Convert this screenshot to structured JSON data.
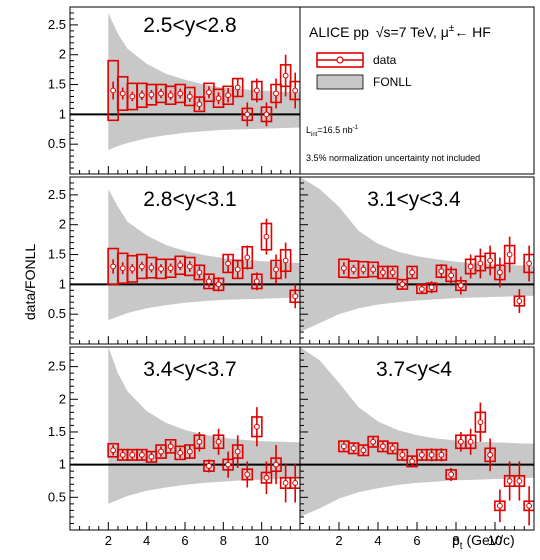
{
  "figure": {
    "experiment_label": "ALICE pp",
    "energy_label": "√s=7 TeV, μ",
    "energy_pm": "±",
    "arrow_label": "← HF",
    "legend": {
      "data": "data",
      "fonll": "FONLL"
    },
    "lumi_main": "L",
    "lumi_sub": "int",
    "lumi_value": "=16.5 nb",
    "lumi_sup": "-1",
    "norm_note": "3.5% normalization uncertainty not included",
    "colors": {
      "data": "#e00000",
      "band": "#c8c8c8",
      "frame": "#000000"
    }
  },
  "chart_data": [
    {
      "type": "scatter",
      "panel": "top-left",
      "title": "2.5<y<2.8",
      "ylabel": "data/FONLL",
      "xlabel": "",
      "xlim": [
        0,
        12
      ],
      "ylim": [
        0,
        2.8
      ],
      "yticks": [
        "0.5",
        "1",
        "1.5",
        "2",
        "2.5"
      ],
      "xticks": [],
      "reference_line": 1,
      "fonll_band": {
        "x": [
          2.0,
          2.5,
          3,
          4,
          5,
          6,
          7,
          8,
          9,
          10,
          11,
          12
        ],
        "low": [
          0.4,
          0.47,
          0.52,
          0.6,
          0.65,
          0.69,
          0.72,
          0.74,
          0.75,
          0.76,
          0.77,
          0.78
        ],
        "high": [
          2.7,
          2.35,
          2.1,
          1.85,
          1.68,
          1.58,
          1.5,
          1.45,
          1.42,
          1.4,
          1.38,
          1.37
        ]
      },
      "points": [
        {
          "x": 2.25,
          "y": 1.4,
          "stat": 0.15,
          "syst": 0.5
        },
        {
          "x": 2.75,
          "y": 1.35,
          "stat": 0.1,
          "syst": 0.28
        },
        {
          "x": 3.25,
          "y": 1.3,
          "stat": 0.08,
          "syst": 0.22
        },
        {
          "x": 3.75,
          "y": 1.32,
          "stat": 0.08,
          "syst": 0.2
        },
        {
          "x": 4.25,
          "y": 1.33,
          "stat": 0.08,
          "syst": 0.17
        },
        {
          "x": 4.75,
          "y": 1.35,
          "stat": 0.08,
          "syst": 0.15
        },
        {
          "x": 5.25,
          "y": 1.32,
          "stat": 0.08,
          "syst": 0.15
        },
        {
          "x": 5.75,
          "y": 1.35,
          "stat": 0.08,
          "syst": 0.15
        },
        {
          "x": 6.25,
          "y": 1.3,
          "stat": 0.09,
          "syst": 0.15
        },
        {
          "x": 6.75,
          "y": 1.17,
          "stat": 0.1,
          "syst": 0.12
        },
        {
          "x": 7.25,
          "y": 1.37,
          "stat": 0.1,
          "syst": 0.15
        },
        {
          "x": 7.75,
          "y": 1.27,
          "stat": 0.1,
          "syst": 0.15
        },
        {
          "x": 8.25,
          "y": 1.32,
          "stat": 0.12,
          "syst": 0.15
        },
        {
          "x": 8.75,
          "y": 1.45,
          "stat": 0.15,
          "syst": 0.15
        },
        {
          "x": 9.25,
          "y": 1.0,
          "stat": 0.2,
          "syst": 0.1
        },
        {
          "x": 9.75,
          "y": 1.4,
          "stat": 0.2,
          "syst": 0.15
        },
        {
          "x": 10.25,
          "y": 1.0,
          "stat": 0.2,
          "syst": 0.12
        },
        {
          "x": 10.75,
          "y": 1.35,
          "stat": 0.25,
          "syst": 0.15
        },
        {
          "x": 11.25,
          "y": 1.65,
          "stat": 0.35,
          "syst": 0.18
        },
        {
          "x": 11.75,
          "y": 1.4,
          "stat": 0.3,
          "syst": 0.15
        }
      ]
    },
    {
      "type": "scatter",
      "panel": "mid-left",
      "title": "2.8<y<3.1",
      "ylabel": "data/FONLL",
      "xlabel": "",
      "xlim": [
        0,
        12
      ],
      "ylim": [
        0,
        2.8
      ],
      "yticks": [
        "0.5",
        "1",
        "1.5",
        "2",
        "2.5"
      ],
      "xticks": [],
      "reference_line": 1,
      "fonll_band": {
        "x": [
          2.0,
          2.5,
          3,
          4,
          5,
          6,
          7,
          8,
          9,
          10,
          11,
          12
        ],
        "low": [
          0.4,
          0.46,
          0.52,
          0.6,
          0.65,
          0.69,
          0.72,
          0.74,
          0.75,
          0.76,
          0.77,
          0.78
        ],
        "high": [
          2.6,
          2.3,
          2.05,
          1.82,
          1.66,
          1.56,
          1.49,
          1.44,
          1.41,
          1.39,
          1.37,
          1.36
        ]
      },
      "points": [
        {
          "x": 2.25,
          "y": 1.3,
          "stat": 0.12,
          "syst": 0.3
        },
        {
          "x": 2.75,
          "y": 1.27,
          "stat": 0.1,
          "syst": 0.25
        },
        {
          "x": 3.25,
          "y": 1.26,
          "stat": 0.08,
          "syst": 0.22
        },
        {
          "x": 3.75,
          "y": 1.3,
          "stat": 0.08,
          "syst": 0.2
        },
        {
          "x": 4.25,
          "y": 1.28,
          "stat": 0.08,
          "syst": 0.17
        },
        {
          "x": 4.75,
          "y": 1.26,
          "stat": 0.08,
          "syst": 0.16
        },
        {
          "x": 5.25,
          "y": 1.27,
          "stat": 0.08,
          "syst": 0.15
        },
        {
          "x": 5.75,
          "y": 1.32,
          "stat": 0.08,
          "syst": 0.15
        },
        {
          "x": 6.25,
          "y": 1.3,
          "stat": 0.09,
          "syst": 0.15
        },
        {
          "x": 6.75,
          "y": 1.2,
          "stat": 0.1,
          "syst": 0.12
        },
        {
          "x": 7.25,
          "y": 1.05,
          "stat": 0.1,
          "syst": 0.12
        },
        {
          "x": 7.75,
          "y": 1.0,
          "stat": 0.12,
          "syst": 0.1
        },
        {
          "x": 8.25,
          "y": 1.35,
          "stat": 0.15,
          "syst": 0.15
        },
        {
          "x": 8.75,
          "y": 1.25,
          "stat": 0.15,
          "syst": 0.15
        },
        {
          "x": 9.25,
          "y": 1.45,
          "stat": 0.2,
          "syst": 0.18
        },
        {
          "x": 9.75,
          "y": 1.05,
          "stat": 0.15,
          "syst": 0.12
        },
        {
          "x": 10.25,
          "y": 1.8,
          "stat": 0.3,
          "syst": 0.22
        },
        {
          "x": 10.75,
          "y": 1.25,
          "stat": 0.25,
          "syst": 0.15
        },
        {
          "x": 11.25,
          "y": 1.4,
          "stat": 0.3,
          "syst": 0.18
        },
        {
          "x": 11.75,
          "y": 0.8,
          "stat": 0.2,
          "syst": 0.1
        }
      ]
    },
    {
      "type": "scatter",
      "panel": "mid-right",
      "title": "3.1<y<3.4",
      "ylabel": "",
      "xlabel": "",
      "xlim": [
        0,
        12
      ],
      "ylim": [
        0,
        2.8
      ],
      "yticks": [],
      "xticks": [],
      "reference_line": 1,
      "fonll_band": {
        "x": [
          0.0,
          1,
          2,
          3,
          4,
          5,
          6,
          7,
          8,
          9,
          10,
          11,
          12
        ],
        "low": [
          0.2,
          0.35,
          0.5,
          0.6,
          0.66,
          0.7,
          0.73,
          0.75,
          0.77,
          0.78,
          0.79,
          0.8,
          0.81
        ],
        "high": [
          2.8,
          2.6,
          2.3,
          1.9,
          1.68,
          1.55,
          1.47,
          1.42,
          1.38,
          1.35,
          1.33,
          1.32,
          1.31
        ]
      },
      "points": [
        {
          "x": 2.25,
          "y": 1.27,
          "stat": 0.1,
          "syst": 0.15
        },
        {
          "x": 2.75,
          "y": 1.25,
          "stat": 0.08,
          "syst": 0.14
        },
        {
          "x": 3.25,
          "y": 1.25,
          "stat": 0.08,
          "syst": 0.13
        },
        {
          "x": 3.75,
          "y": 1.25,
          "stat": 0.08,
          "syst": 0.12
        },
        {
          "x": 4.25,
          "y": 1.2,
          "stat": 0.08,
          "syst": 0.1
        },
        {
          "x": 4.75,
          "y": 1.2,
          "stat": 0.08,
          "syst": 0.1
        },
        {
          "x": 5.25,
          "y": 1.0,
          "stat": 0.08,
          "syst": 0.08
        },
        {
          "x": 5.75,
          "y": 1.2,
          "stat": 0.08,
          "syst": 0.1
        },
        {
          "x": 6.25,
          "y": 0.92,
          "stat": 0.08,
          "syst": 0.07
        },
        {
          "x": 6.75,
          "y": 0.95,
          "stat": 0.1,
          "syst": 0.07
        },
        {
          "x": 7.25,
          "y": 1.22,
          "stat": 0.12,
          "syst": 0.1
        },
        {
          "x": 7.75,
          "y": 1.15,
          "stat": 0.15,
          "syst": 0.1
        },
        {
          "x": 8.25,
          "y": 0.98,
          "stat": 0.15,
          "syst": 0.08
        },
        {
          "x": 8.75,
          "y": 1.3,
          "stat": 0.2,
          "syst": 0.12
        },
        {
          "x": 9.25,
          "y": 1.35,
          "stat": 0.25,
          "syst": 0.12
        },
        {
          "x": 9.75,
          "y": 1.4,
          "stat": 0.25,
          "syst": 0.12
        },
        {
          "x": 10.25,
          "y": 1.2,
          "stat": 0.25,
          "syst": 0.12
        },
        {
          "x": 10.75,
          "y": 1.5,
          "stat": 0.3,
          "syst": 0.15
        },
        {
          "x": 11.25,
          "y": 0.72,
          "stat": 0.2,
          "syst": 0.08
        },
        {
          "x": 11.75,
          "y": 1.35,
          "stat": 0.3,
          "syst": 0.15
        }
      ]
    },
    {
      "type": "scatter",
      "panel": "bottom-left",
      "title": "3.4<y<3.7",
      "ylabel": "data/FONLL",
      "xlabel": "",
      "xlim": [
        0,
        12
      ],
      "ylim": [
        0,
        2.8
      ],
      "yticks": [
        "0.5",
        "1",
        "1.5",
        "2",
        "2.5"
      ],
      "xticks": [
        "2",
        "4",
        "6",
        "8",
        "10"
      ],
      "reference_line": 1,
      "fonll_band": {
        "x": [
          2.0,
          2.5,
          3,
          4,
          5,
          6,
          7,
          8,
          9,
          10,
          11,
          12
        ],
        "low": [
          0.4,
          0.46,
          0.52,
          0.6,
          0.65,
          0.69,
          0.72,
          0.74,
          0.76,
          0.77,
          0.78,
          0.79
        ],
        "high": [
          2.8,
          2.4,
          2.12,
          1.82,
          1.64,
          1.53,
          1.46,
          1.41,
          1.38,
          1.36,
          1.35,
          1.34
        ]
      },
      "points": [
        {
          "x": 2.25,
          "y": 1.22,
          "stat": 0.08,
          "syst": 0.1
        },
        {
          "x": 2.75,
          "y": 1.15,
          "stat": 0.07,
          "syst": 0.08
        },
        {
          "x": 3.25,
          "y": 1.15,
          "stat": 0.07,
          "syst": 0.08
        },
        {
          "x": 3.75,
          "y": 1.15,
          "stat": 0.07,
          "syst": 0.08
        },
        {
          "x": 4.25,
          "y": 1.12,
          "stat": 0.07,
          "syst": 0.08
        },
        {
          "x": 4.75,
          "y": 1.2,
          "stat": 0.08,
          "syst": 0.1
        },
        {
          "x": 5.25,
          "y": 1.28,
          "stat": 0.08,
          "syst": 0.1
        },
        {
          "x": 5.75,
          "y": 1.18,
          "stat": 0.08,
          "syst": 0.1
        },
        {
          "x": 6.25,
          "y": 1.2,
          "stat": 0.1,
          "syst": 0.1
        },
        {
          "x": 6.75,
          "y": 1.35,
          "stat": 0.15,
          "syst": 0.1
        },
        {
          "x": 7.25,
          "y": 0.98,
          "stat": 0.1,
          "syst": 0.08
        },
        {
          "x": 7.75,
          "y": 1.35,
          "stat": 0.2,
          "syst": 0.1
        },
        {
          "x": 8.25,
          "y": 1.0,
          "stat": 0.2,
          "syst": 0.08
        },
        {
          "x": 8.75,
          "y": 1.2,
          "stat": 0.25,
          "syst": 0.1
        },
        {
          "x": 9.25,
          "y": 0.85,
          "stat": 0.2,
          "syst": 0.08
        },
        {
          "x": 9.75,
          "y": 1.58,
          "stat": 0.3,
          "syst": 0.15
        },
        {
          "x": 10.25,
          "y": 0.8,
          "stat": 0.25,
          "syst": 0.08
        },
        {
          "x": 10.75,
          "y": 1.0,
          "stat": 0.3,
          "syst": 0.1
        },
        {
          "x": 11.25,
          "y": 0.72,
          "stat": 0.3,
          "syst": 0.08
        },
        {
          "x": 11.75,
          "y": 0.72,
          "stat": 0.3,
          "syst": 0.08
        }
      ]
    },
    {
      "type": "scatter",
      "panel": "bottom-right",
      "title": "3.7<y<4",
      "ylabel": "",
      "xlabel": "p",
      "xlabel_sub": "t",
      "xlabel_unit": " (GeV/c)",
      "xlim": [
        0,
        12
      ],
      "ylim": [
        0,
        2.8
      ],
      "yticks": [],
      "xticks": [
        "2",
        "4",
        "6",
        "8",
        "10"
      ],
      "reference_line": 1,
      "fonll_band": {
        "x": [
          0.0,
          1,
          2,
          3,
          4,
          5,
          6,
          7,
          8,
          9,
          10,
          11,
          12
        ],
        "low": [
          0.2,
          0.33,
          0.48,
          0.58,
          0.64,
          0.69,
          0.72,
          0.74,
          0.76,
          0.77,
          0.78,
          0.79,
          0.8
        ],
        "high": [
          2.8,
          2.6,
          2.25,
          1.88,
          1.66,
          1.53,
          1.45,
          1.4,
          1.37,
          1.35,
          1.34,
          1.33,
          1.32
        ]
      },
      "points": [
        {
          "x": 2.25,
          "y": 1.28,
          "stat": 0.07,
          "syst": 0.08
        },
        {
          "x": 2.75,
          "y": 1.25,
          "stat": 0.07,
          "syst": 0.08
        },
        {
          "x": 3.25,
          "y": 1.22,
          "stat": 0.07,
          "syst": 0.08
        },
        {
          "x": 3.75,
          "y": 1.35,
          "stat": 0.07,
          "syst": 0.08
        },
        {
          "x": 4.25,
          "y": 1.28,
          "stat": 0.07,
          "syst": 0.08
        },
        {
          "x": 4.75,
          "y": 1.25,
          "stat": 0.07,
          "syst": 0.08
        },
        {
          "x": 5.25,
          "y": 1.15,
          "stat": 0.08,
          "syst": 0.08
        },
        {
          "x": 5.75,
          "y": 1.05,
          "stat": 0.08,
          "syst": 0.08
        },
        {
          "x": 6.25,
          "y": 1.15,
          "stat": 0.09,
          "syst": 0.08
        },
        {
          "x": 6.75,
          "y": 1.15,
          "stat": 0.1,
          "syst": 0.08
        },
        {
          "x": 7.25,
          "y": 1.15,
          "stat": 0.1,
          "syst": 0.08
        },
        {
          "x": 7.75,
          "y": 0.85,
          "stat": 0.1,
          "syst": 0.07
        },
        {
          "x": 8.25,
          "y": 1.35,
          "stat": 0.15,
          "syst": 0.1
        },
        {
          "x": 8.75,
          "y": 1.35,
          "stat": 0.2,
          "syst": 0.1
        },
        {
          "x": 9.25,
          "y": 1.65,
          "stat": 0.3,
          "syst": 0.15
        },
        {
          "x": 9.75,
          "y": 1.15,
          "stat": 0.25,
          "syst": 0.1
        },
        {
          "x": 10.25,
          "y": 0.37,
          "stat": 0.25,
          "syst": 0.07
        },
        {
          "x": 10.75,
          "y": 0.75,
          "stat": 0.3,
          "syst": 0.08
        },
        {
          "x": 11.25,
          "y": 0.75,
          "stat": 0.3,
          "syst": 0.08
        },
        {
          "x": 11.75,
          "y": 0.37,
          "stat": 0.3,
          "syst": 0.07
        }
      ]
    }
  ]
}
